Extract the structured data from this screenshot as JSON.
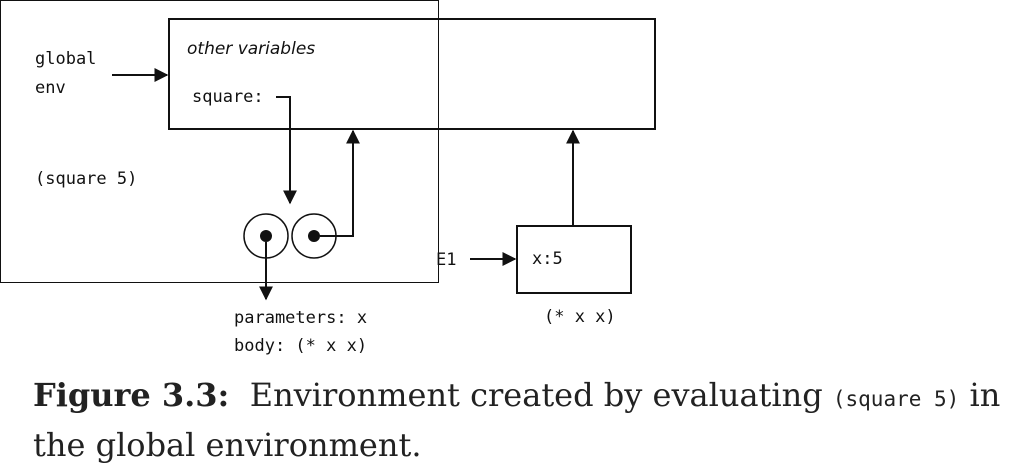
{
  "diagram": {
    "global_env_label_line1": "global",
    "global_env_label_line2": "env",
    "other_variables": "other variables",
    "square_binding": "square:",
    "expression": "(square 5)",
    "parameters": "parameters: x",
    "body": "body: (* x x)",
    "frame_label": "E1",
    "frame_binding": "x:5",
    "frame_body": "(* x x)"
  },
  "caption": {
    "label": "Figure 3.3:",
    "text_before": "Environment created by evaluating",
    "code": "(square 5)",
    "text_after": "in the global environment."
  }
}
